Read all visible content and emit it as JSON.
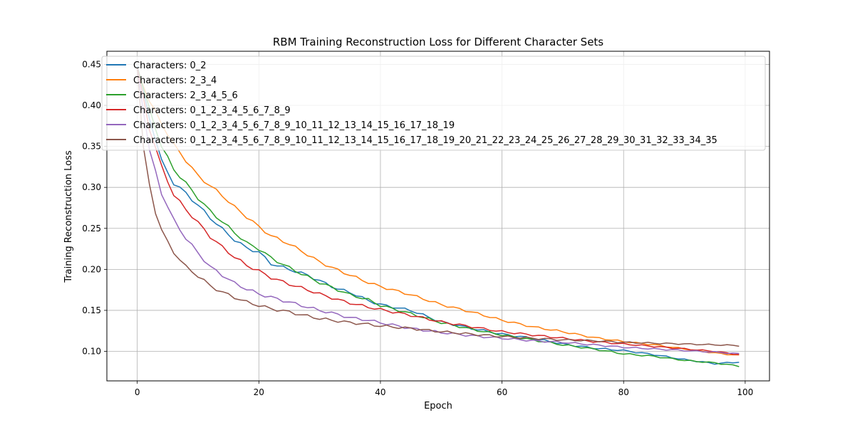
{
  "chart_data": {
    "type": "line",
    "title": "RBM Training Reconstruction Loss for Different Character Sets",
    "xlabel": "Epoch",
    "ylabel": "Training Reconstruction Loss",
    "xlim": [
      -5,
      104
    ],
    "ylim": [
      0.064,
      0.466
    ],
    "xticks": [
      0,
      20,
      40,
      60,
      80,
      100
    ],
    "yticks": [
      0.1,
      0.15,
      0.2,
      0.25,
      0.3,
      0.35,
      0.4,
      0.45
    ],
    "xtick_labels": [
      "0",
      "20",
      "40",
      "60",
      "80",
      "100"
    ],
    "ytick_labels": [
      "0.10",
      "0.15",
      "0.20",
      "0.25",
      "0.30",
      "0.35",
      "0.40",
      "0.45"
    ],
    "grid": true,
    "legend_position": "top-left",
    "epochs": 100,
    "series": [
      {
        "name": "Characters: 0_2",
        "color": "#1f77b4",
        "start": 0.448,
        "anchors": [
          [
            0,
            0.448
          ],
          [
            2,
            0.385
          ],
          [
            4,
            0.332
          ],
          [
            6,
            0.305
          ],
          [
            8,
            0.293
          ],
          [
            10,
            0.278
          ],
          [
            12,
            0.263
          ],
          [
            14,
            0.249
          ],
          [
            16,
            0.236
          ],
          [
            18,
            0.226
          ],
          [
            20,
            0.221
          ],
          [
            22,
            0.207
          ],
          [
            25,
            0.2
          ],
          [
            28,
            0.193
          ],
          [
            30,
            0.186
          ],
          [
            33,
            0.176
          ],
          [
            35,
            0.172
          ],
          [
            38,
            0.162
          ],
          [
            40,
            0.157
          ],
          [
            45,
            0.15
          ],
          [
            50,
            0.136
          ],
          [
            55,
            0.128
          ],
          [
            60,
            0.121
          ],
          [
            65,
            0.116
          ],
          [
            70,
            0.109
          ],
          [
            75,
            0.104
          ],
          [
            80,
            0.101
          ],
          [
            85,
            0.096
          ],
          [
            90,
            0.09
          ],
          [
            95,
            0.085
          ],
          [
            99,
            0.087
          ]
        ]
      },
      {
        "name": "Characters: 2_3_4",
        "color": "#ff7f0e",
        "start": 0.445,
        "anchors": [
          [
            0,
            0.445
          ],
          [
            2,
            0.405
          ],
          [
            4,
            0.378
          ],
          [
            6,
            0.352
          ],
          [
            8,
            0.333
          ],
          [
            10,
            0.314
          ],
          [
            12,
            0.302
          ],
          [
            14,
            0.29
          ],
          [
            16,
            0.276
          ],
          [
            18,
            0.264
          ],
          [
            20,
            0.252
          ],
          [
            22,
            0.241
          ],
          [
            25,
            0.231
          ],
          [
            28,
            0.218
          ],
          [
            30,
            0.209
          ],
          [
            33,
            0.199
          ],
          [
            35,
            0.193
          ],
          [
            38,
            0.184
          ],
          [
            40,
            0.179
          ],
          [
            45,
            0.169
          ],
          [
            50,
            0.157
          ],
          [
            55,
            0.148
          ],
          [
            60,
            0.138
          ],
          [
            65,
            0.13
          ],
          [
            70,
            0.124
          ],
          [
            75,
            0.117
          ],
          [
            80,
            0.112
          ],
          [
            85,
            0.108
          ],
          [
            90,
            0.103
          ],
          [
            95,
            0.098
          ],
          [
            99,
            0.095
          ]
        ]
      },
      {
        "name": "Characters: 2_3_4_5_6",
        "color": "#2ca02c",
        "start": 0.446,
        "anchors": [
          [
            0,
            0.446
          ],
          [
            2,
            0.395
          ],
          [
            4,
            0.35
          ],
          [
            6,
            0.322
          ],
          [
            8,
            0.305
          ],
          [
            10,
            0.287
          ],
          [
            12,
            0.271
          ],
          [
            14,
            0.258
          ],
          [
            16,
            0.245
          ],
          [
            18,
            0.232
          ],
          [
            20,
            0.225
          ],
          [
            22,
            0.214
          ],
          [
            25,
            0.202
          ],
          [
            28,
            0.191
          ],
          [
            30,
            0.184
          ],
          [
            33,
            0.175
          ],
          [
            35,
            0.169
          ],
          [
            38,
            0.163
          ],
          [
            40,
            0.156
          ],
          [
            45,
            0.146
          ],
          [
            50,
            0.135
          ],
          [
            55,
            0.127
          ],
          [
            60,
            0.12
          ],
          [
            65,
            0.114
          ],
          [
            70,
            0.108
          ],
          [
            75,
            0.103
          ],
          [
            80,
            0.097
          ],
          [
            85,
            0.094
          ],
          [
            90,
            0.089
          ],
          [
            95,
            0.086
          ],
          [
            99,
            0.082
          ]
        ]
      },
      {
        "name": "Characters: 0_1_2_3_4_5_6_7_8_9",
        "color": "#d62728",
        "start": 0.446,
        "anchors": [
          [
            0,
            0.446
          ],
          [
            2,
            0.372
          ],
          [
            4,
            0.325
          ],
          [
            6,
            0.291
          ],
          [
            8,
            0.273
          ],
          [
            10,
            0.257
          ],
          [
            12,
            0.24
          ],
          [
            14,
            0.227
          ],
          [
            16,
            0.215
          ],
          [
            18,
            0.205
          ],
          [
            20,
            0.198
          ],
          [
            22,
            0.19
          ],
          [
            25,
            0.182
          ],
          [
            28,
            0.175
          ],
          [
            30,
            0.17
          ],
          [
            33,
            0.163
          ],
          [
            35,
            0.159
          ],
          [
            38,
            0.154
          ],
          [
            40,
            0.151
          ],
          [
            45,
            0.144
          ],
          [
            50,
            0.136
          ],
          [
            55,
            0.13
          ],
          [
            60,
            0.124
          ],
          [
            65,
            0.12
          ],
          [
            70,
            0.116
          ],
          [
            75,
            0.112
          ],
          [
            80,
            0.109
          ],
          [
            85,
            0.106
          ],
          [
            90,
            0.103
          ],
          [
            95,
            0.1
          ],
          [
            99,
            0.096
          ]
        ]
      },
      {
        "name": "Characters: 0_1_2_3_4_5_6_7_8_9_10_11_12_13_14_15_16_17_18_19",
        "color": "#9467bd",
        "start": 0.445,
        "anchors": [
          [
            0,
            0.445
          ],
          [
            2,
            0.345
          ],
          [
            4,
            0.293
          ],
          [
            6,
            0.26
          ],
          [
            8,
            0.238
          ],
          [
            10,
            0.22
          ],
          [
            12,
            0.203
          ],
          [
            14,
            0.193
          ],
          [
            16,
            0.183
          ],
          [
            18,
            0.176
          ],
          [
            20,
            0.17
          ],
          [
            22,
            0.166
          ],
          [
            25,
            0.16
          ],
          [
            28,
            0.154
          ],
          [
            30,
            0.15
          ],
          [
            33,
            0.145
          ],
          [
            35,
            0.141
          ],
          [
            38,
            0.138
          ],
          [
            40,
            0.135
          ],
          [
            45,
            0.128
          ],
          [
            50,
            0.123
          ],
          [
            55,
            0.119
          ],
          [
            60,
            0.116
          ],
          [
            65,
            0.113
          ],
          [
            70,
            0.111
          ],
          [
            75,
            0.108
          ],
          [
            80,
            0.105
          ],
          [
            85,
            0.103
          ],
          [
            90,
            0.101
          ],
          [
            95,
            0.099
          ],
          [
            99,
            0.097
          ]
        ]
      },
      {
        "name": "Characters: 0_1_2_3_4_5_6_7_8_9_10_11_12_13_14_15_16_17_18_19_20_21_22_23_24_25_26_27_28_29_30_31_32_33_34_35",
        "color": "#8c564b",
        "start": 0.445,
        "anchors": [
          [
            0,
            0.445
          ],
          [
            1,
            0.348
          ],
          [
            2,
            0.303
          ],
          [
            3,
            0.27
          ],
          [
            4,
            0.248
          ],
          [
            5,
            0.233
          ],
          [
            6,
            0.221
          ],
          [
            8,
            0.203
          ],
          [
            10,
            0.192
          ],
          [
            12,
            0.18
          ],
          [
            14,
            0.172
          ],
          [
            16,
            0.166
          ],
          [
            18,
            0.16
          ],
          [
            20,
            0.156
          ],
          [
            22,
            0.152
          ],
          [
            25,
            0.148
          ],
          [
            28,
            0.143
          ],
          [
            30,
            0.14
          ],
          [
            33,
            0.137
          ],
          [
            35,
            0.135
          ],
          [
            38,
            0.133
          ],
          [
            40,
            0.131
          ],
          [
            45,
            0.128
          ],
          [
            50,
            0.124
          ],
          [
            55,
            0.121
          ],
          [
            60,
            0.118
          ],
          [
            65,
            0.116
          ],
          [
            70,
            0.114
          ],
          [
            75,
            0.113
          ],
          [
            80,
            0.111
          ],
          [
            85,
            0.11
          ],
          [
            90,
            0.109
          ],
          [
            95,
            0.108
          ],
          [
            99,
            0.107
          ]
        ]
      }
    ]
  }
}
